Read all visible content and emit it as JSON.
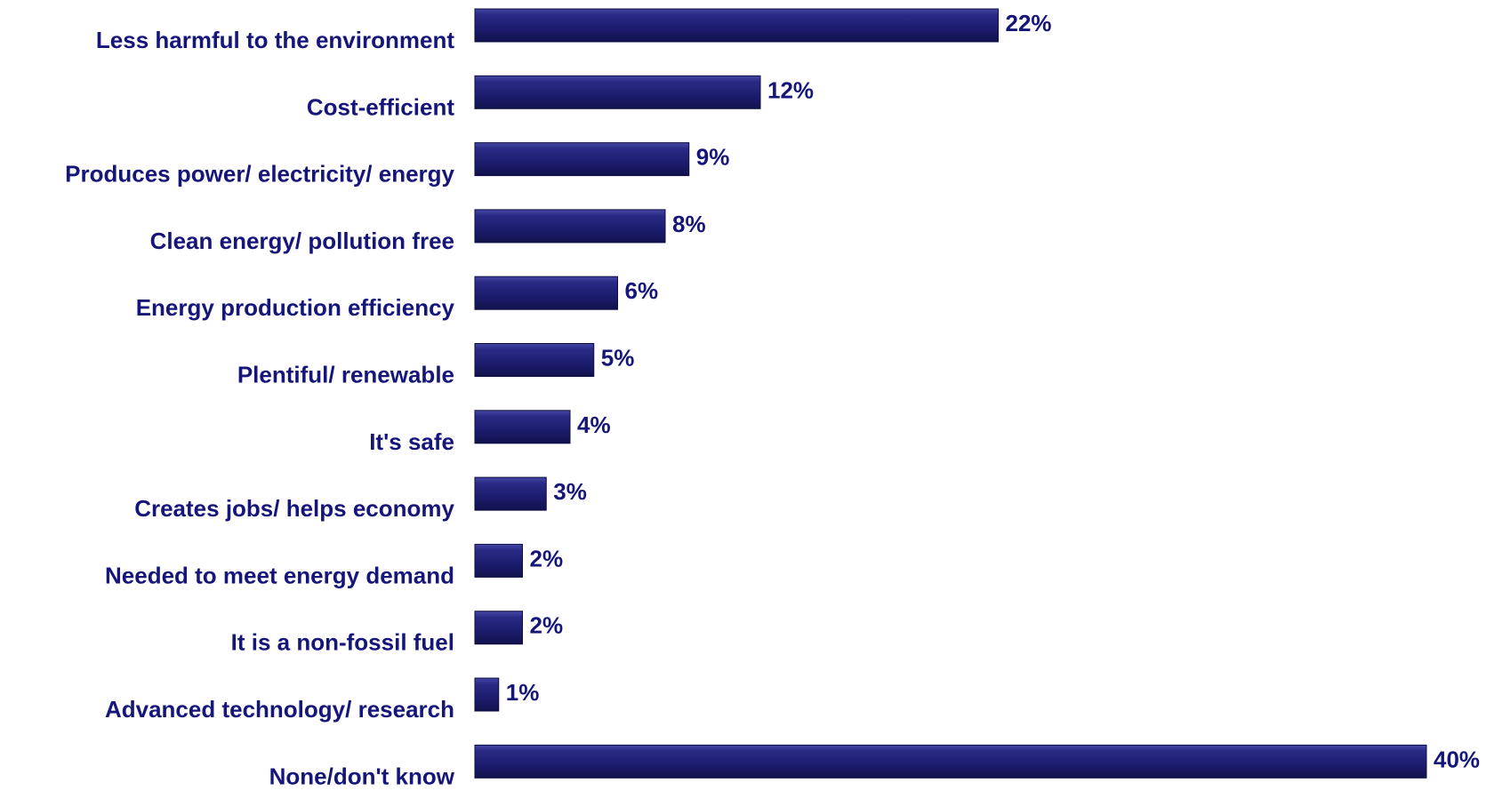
{
  "chart_data": {
    "type": "bar",
    "orientation": "horizontal",
    "categories": [
      "Less harmful to the environment",
      "Cost-efficient",
      "Produces power/ electricity/ energy",
      "Clean energy/ pollution free",
      "Energy production efficiency",
      "Plentiful/ renewable",
      "It's safe",
      "Creates jobs/ helps economy",
      "Needed to meet energy demand",
      "It is a non-fossil fuel",
      "Advanced technology/ research",
      "None/don't know"
    ],
    "values": [
      22,
      12,
      9,
      8,
      6,
      5,
      4,
      3,
      2,
      2,
      1,
      40
    ],
    "value_labels": [
      "22%",
      "12%",
      "9%",
      "8%",
      "6%",
      "5%",
      "4%",
      "3%",
      "2%",
      "2%",
      "1%",
      "40%"
    ],
    "xlim": [
      0,
      40
    ],
    "grid": false,
    "legend": "none",
    "bar_color": "#1c1c6e",
    "text_color": "#16167a"
  }
}
